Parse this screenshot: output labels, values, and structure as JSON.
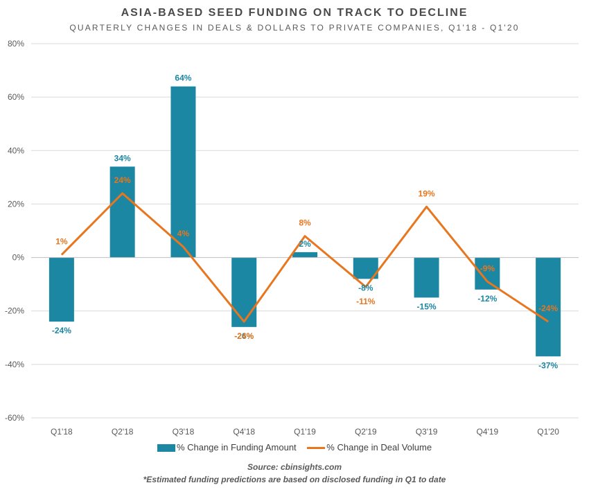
{
  "chart_data": {
    "type": "bar",
    "title": "ASIA-BASED SEED FUNDING ON TRACK TO DECLINE",
    "subtitle": "QUARTERLY CHANGES IN DEALS & DOLLARS TO PRIVATE COMPANIES, Q1'18 - Q1'20",
    "categories": [
      "Q1'18",
      "Q2'18",
      "Q3'18",
      "Q4'18",
      "Q1'19",
      "Q2'19",
      "Q3'19",
      "Q4'19",
      "Q1'20"
    ],
    "ylim": [
      -60,
      80
    ],
    "yticks": [
      "-60%",
      "-40%",
      "-20%",
      "0%",
      "20%",
      "40%",
      "60%",
      "80%"
    ],
    "grid": true,
    "legend_position": "bottom",
    "series": [
      {
        "name": "% Change in Funding Amount",
        "type": "bar",
        "color": "#1b87a3",
        "values": [
          -24,
          34,
          64,
          -26,
          2,
          -8,
          -15,
          -12,
          -37
        ],
        "labels": [
          "-24%",
          "34%",
          "64%",
          "-26%",
          "2%",
          "-8%",
          "-15%",
          "-12%",
          "-37%"
        ]
      },
      {
        "name": "% Change in Deal Volume",
        "type": "line",
        "color": "#e8761e",
        "values": [
          1,
          24,
          4,
          -24,
          8,
          -11,
          19,
          -9,
          -24
        ],
        "labels": [
          "1%",
          "24%",
          "4%",
          "-24%",
          "8%",
          "-11%",
          "19%",
          "-9%",
          "-24%"
        ]
      }
    ]
  },
  "footer": {
    "source": "Source: cbinsights.com",
    "note": "*Estimated funding predictions are based on disclosed funding in Q1 to date"
  }
}
